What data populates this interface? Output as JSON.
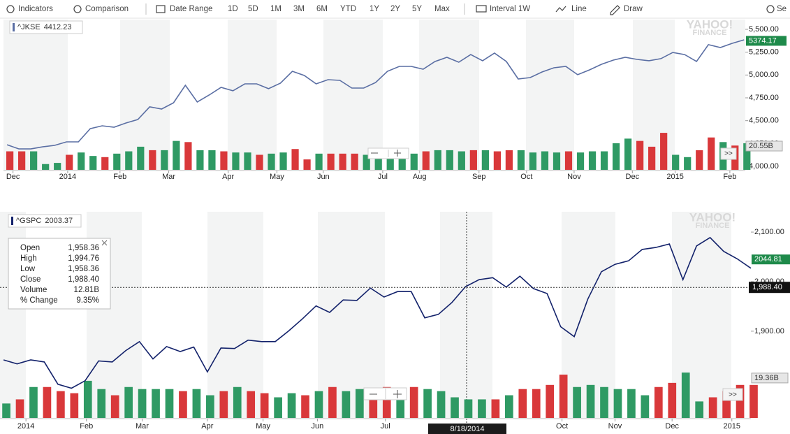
{
  "toolbar": {
    "indicators": "Indicators",
    "comparison": "Comparison",
    "date_range": "Date Range",
    "ranges": [
      "1D",
      "5D",
      "1M",
      "3M",
      "6M",
      "YTD",
      "1Y",
      "2Y",
      "5Y",
      "Max"
    ],
    "interval": "Interval 1W",
    "line": "Line",
    "draw": "Draw",
    "settings": "Se"
  },
  "controls": {
    "more": ">>"
  },
  "tooltip": {
    "rows": [
      [
        "Open",
        "1,958.36"
      ],
      [
        "High",
        "1,994.76"
      ],
      [
        "Low",
        "1,958.36"
      ],
      [
        "Close",
        "1,988.40"
      ],
      [
        "Volume",
        "12.81B"
      ],
      [
        "% Change",
        "9.35%"
      ]
    ]
  },
  "chart_data": [
    {
      "type": "line",
      "watermark": [
        "YAHOO!",
        "FINANCE"
      ],
      "series": [
        {
          "name": "^JKSE",
          "legend_value": 4412.23,
          "color": "#5a6ea3",
          "values": [
            4237,
            4191,
            4191,
            4214,
            4230,
            4268,
            4268,
            4413,
            4444,
            4429,
            4475,
            4513,
            4651,
            4628,
            4696,
            4888,
            4704,
            4781,
            4865,
            4827,
            4903,
            4903,
            4850,
            4911,
            5041,
            4995,
            4903,
            4949,
            4941,
            4857,
            4857,
            4918,
            5041,
            5094,
            5094,
            5064,
            5148,
            5194,
            5140,
            5224,
            5156,
            5240,
            5148,
            4957,
            4972,
            5033,
            5079,
            5094,
            5003,
            5056,
            5117,
            5163,
            5194,
            5171,
            5156,
            5179,
            5247,
            5224,
            5148,
            5332,
            5301,
            5347,
            5385
          ]
        },
        {
          "type": "bar",
          "axis": "y2",
          "values": [
            16,
            16,
            16,
            5,
            6,
            13,
            15,
            12,
            11,
            14,
            16,
            20,
            17,
            17,
            25,
            24,
            17,
            17,
            16,
            15,
            15,
            13,
            14,
            15,
            18,
            9,
            14,
            14,
            14,
            14,
            13,
            12,
            17,
            13,
            14,
            16,
            17,
            17,
            16,
            17,
            17,
            16,
            17,
            17,
            15,
            16,
            15,
            16,
            15,
            16,
            16,
            23,
            27,
            25,
            20,
            32,
            13,
            11,
            17,
            28,
            24,
            21,
            23
          ],
          "colors": [
            "#d9383a",
            "#d9383a",
            "#2f9a64",
            "#2f9a64",
            "#2f9a64",
            "#d9383a",
            "#2f9a64",
            "#2f9a64",
            "#d9383a",
            "#2f9a64",
            "#2f9a64",
            "#2f9a64",
            "#d9383a",
            "#2f9a64",
            "#2f9a64",
            "#d9383a",
            "#2f9a64",
            "#2f9a64",
            "#d9383a",
            "#2f9a64",
            "#2f9a64",
            "#d9383a",
            "#2f9a64",
            "#2f9a64",
            "#d9383a",
            "#d9383a",
            "#2f9a64",
            "#d9383a",
            "#d9383a",
            "#d9383a",
            "#2f9a64",
            "#2f9a64",
            "#2f9a64",
            "#2f9a64",
            "#2f9a64",
            "#d9383a",
            "#2f9a64",
            "#2f9a64",
            "#2f9a64",
            "#d9383a",
            "#2f9a64",
            "#d9383a",
            "#d9383a",
            "#2f9a64",
            "#2f9a64",
            "#2f9a64",
            "#2f9a64",
            "#d9383a",
            "#2f9a64",
            "#2f9a64",
            "#2f9a64",
            "#2f9a64",
            "#2f9a64",
            "#d9383a",
            "#d9383a",
            "#d9383a",
            "#2f9a64",
            "#2f9a64",
            "#d9383a",
            "#d9383a",
            "#2f9a64",
            "#d9383a",
            "#2f9a64"
          ]
        }
      ],
      "xlim": [
        -0.3,
        62.1
      ],
      "xticks": [
        {
          "value": 0.5,
          "label": "Dec"
        },
        {
          "value": 5.1,
          "label": "2014"
        },
        {
          "value": 9.5,
          "label": "Feb"
        },
        {
          "value": 13.6,
          "label": "Mar"
        },
        {
          "value": 18.6,
          "label": "Apr"
        },
        {
          "value": 22.7,
          "label": "May"
        },
        {
          "value": 26.6,
          "label": "Jun"
        },
        {
          "value": 31.6,
          "label": "Jul"
        },
        {
          "value": 34.7,
          "label": "Aug"
        },
        {
          "value": 39.7,
          "label": "Sep"
        },
        {
          "value": 43.7,
          "label": "Oct"
        },
        {
          "value": 47.7,
          "label": "Nov"
        },
        {
          "value": 52.6,
          "label": "Dec"
        },
        {
          "value": 56.2,
          "label": "2015"
        },
        {
          "value": 60.8,
          "label": "Feb"
        }
      ],
      "ylim": [
        3962,
        5607
      ],
      "yticks": [
        {
          "value": 4000,
          "label": "4,000.00"
        },
        {
          "value": 4250,
          "label": "4,250.00"
        },
        {
          "value": 4500,
          "label": "4,500.00"
        },
        {
          "value": 4750,
          "label": "4,750.00"
        },
        {
          "value": 5000,
          "label": "5,000.00"
        },
        {
          "value": 5250,
          "label": "5,250.00"
        },
        {
          "value": 5500,
          "label": "5,500.00"
        }
      ],
      "y2lim": [
        0,
        130
      ],
      "last_label": 5374.17,
      "last_label_color": "#1e8a4a",
      "volume_label": {
        "value": 20.55,
        "label": "20.55B"
      }
    },
    {
      "type": "line",
      "watermark": [
        "YAHOO!",
        "FINANCE"
      ],
      "series": [
        {
          "name": "^GSPC",
          "legend_value": 2003.37,
          "color": "#13226b",
          "values": [
            1842,
            1834,
            1842,
            1838,
            1793,
            1785,
            1800,
            1840,
            1838,
            1861,
            1879,
            1844,
            1869,
            1859,
            1868,
            1818,
            1866,
            1865,
            1882,
            1879,
            1879,
            1901,
            1925,
            1951,
            1938,
            1963,
            1962,
            1987,
            1969,
            1980,
            1980,
            1927,
            1934,
            1958,
            1990,
            2004,
            2008,
            1989,
            2011,
            1986,
            1976,
            1909,
            1889,
            1965,
            2020,
            2035,
            2042,
            2065,
            2069,
            2076,
            2004,
            2072,
            2089,
            2061,
            2046,
            2027
          ]
        },
        {
          "type": "bar",
          "axis": "y2",
          "values": [
            7,
            9,
            15,
            15,
            13,
            12,
            18,
            14,
            11,
            15,
            14,
            14,
            14,
            13,
            14,
            11,
            13,
            15,
            13,
            12,
            10,
            12,
            11,
            13,
            15,
            13,
            14,
            11,
            15,
            13,
            15,
            14,
            13,
            10,
            9,
            9,
            9,
            11,
            14,
            14,
            16,
            21,
            15,
            16,
            15,
            14,
            14,
            11,
            15,
            17,
            22,
            8,
            10,
            13,
            16,
            16
          ],
          "colors": [
            "#2f9a64",
            "#d9383a",
            "#2f9a64",
            "#d9383a",
            "#d9383a",
            "#d9383a",
            "#2f9a64",
            "#2f9a64",
            "#d9383a",
            "#2f9a64",
            "#2f9a64",
            "#2f9a64",
            "#2f9a64",
            "#d9383a",
            "#2f9a64",
            "#2f9a64",
            "#d9383a",
            "#2f9a64",
            "#d9383a",
            "#d9383a",
            "#2f9a64",
            "#2f9a64",
            "#d9383a",
            "#2f9a64",
            "#d9383a",
            "#2f9a64",
            "#2f9a64",
            "#d9383a",
            "#d9383a",
            "#2f9a64",
            "#d9383a",
            "#2f9a64",
            "#2f9a64",
            "#2f9a64",
            "#2f9a64",
            "#2f9a64",
            "#d9383a",
            "#2f9a64",
            "#d9383a",
            "#d9383a",
            "#d9383a",
            "#d9383a",
            "#2f9a64",
            "#2f9a64",
            "#2f9a64",
            "#2f9a64",
            "#2f9a64",
            "#2f9a64",
            "#d9383a",
            "#d9383a",
            "#2f9a64",
            "#2f9a64",
            "#d9383a",
            "#d9383a",
            "#d9383a",
            "#d9383a"
          ]
        }
      ],
      "xlim": [
        -0.26,
        55
      ],
      "xticks": [
        {
          "value": 1.65,
          "label": "2014"
        },
        {
          "value": 6.1,
          "label": "Feb"
        },
        {
          "value": 10.2,
          "label": "Mar"
        },
        {
          "value": 15.0,
          "label": "Apr"
        },
        {
          "value": 19.1,
          "label": "May"
        },
        {
          "value": 23.1,
          "label": "Jun"
        },
        {
          "value": 28.1,
          "label": "Jul"
        },
        {
          "value": 41.1,
          "label": "Oct"
        },
        {
          "value": 45.0,
          "label": "Nov"
        },
        {
          "value": 49.2,
          "label": "Dec"
        },
        {
          "value": 53.6,
          "label": "2015"
        }
      ],
      "ylim": [
        1725,
        2141
      ],
      "yticks": [
        {
          "value": 1900,
          "label": "1,900.00"
        },
        {
          "value": 2000,
          "label": "2,000.00"
        },
        {
          "value": 2100,
          "label": "2,100.00"
        }
      ],
      "y2lim": [
        0,
        100
      ],
      "last_label": 2044.81,
      "last_label_color": "#1e8a4a",
      "volume_label": {
        "value": 19.36,
        "label": "19.36B"
      },
      "crosshair": {
        "value": 1988.4,
        "label": "1,988.40",
        "date": "8/18/2014"
      }
    }
  ]
}
